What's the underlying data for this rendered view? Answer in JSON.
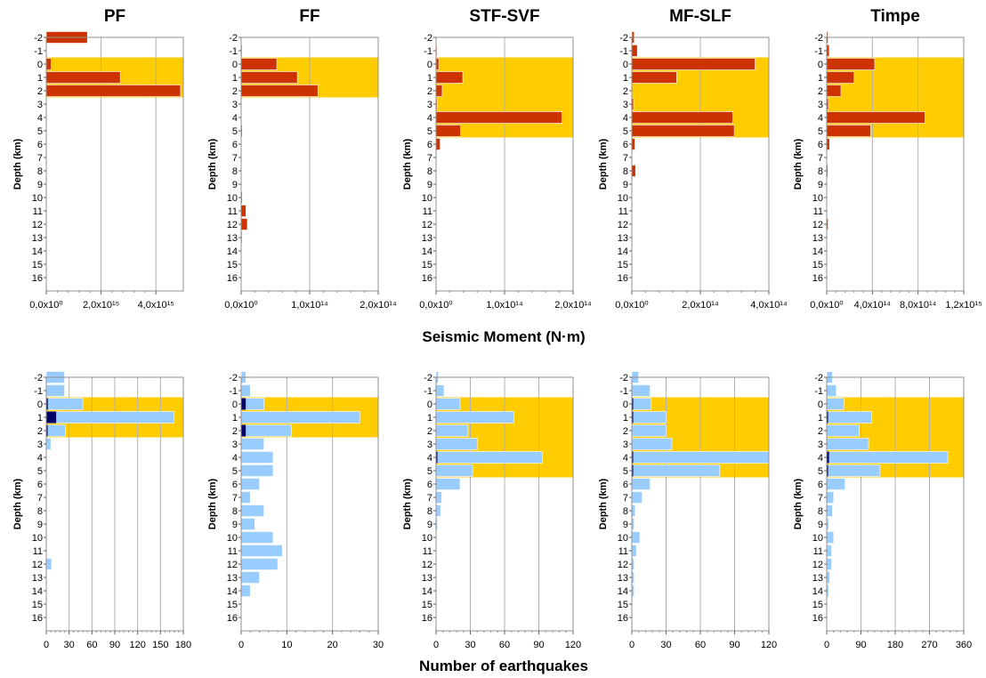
{
  "colors": {
    "zone": "#ffcc00",
    "moment_bar": "#cc3300",
    "count_bar": "#99ccff",
    "count_highlight": "#000066",
    "grid": "#b0b0b0",
    "frame": "#909090"
  },
  "labels": {
    "moment_xlabel": "Seismic Moment (N·m)",
    "count_xlabel": "Number of earthquakes"
  },
  "chart_data": [
    {
      "type": "bar",
      "orientation": "horizontal",
      "title": "PF",
      "ylabel": "Depth (km)",
      "xlabel": "Seismic Moment (N·m)",
      "depths": [
        -2,
        -1,
        0,
        1,
        2,
        3,
        4,
        5,
        6,
        7,
        8,
        9,
        10,
        11,
        12,
        13,
        14,
        15,
        16
      ],
      "xlim": [
        0,
        5000000000000000.0
      ],
      "xticks": [
        0,
        2000000000000000.0,
        4000000000000000.0
      ],
      "xtick_labels": [
        "0,0x10⁰",
        "2,0x10¹⁵",
        "4,0x10¹⁵"
      ],
      "values": [
        1500000000000000.0,
        0,
        180000000000000.0,
        2700000000000000.0,
        4900000000000000.0,
        0,
        0,
        0,
        0,
        0,
        0,
        0,
        0,
        0,
        0,
        0,
        0,
        0,
        0
      ],
      "zone_depths": [
        0,
        2
      ]
    },
    {
      "type": "bar",
      "orientation": "horizontal",
      "title": "FF",
      "ylabel": "Depth (km)",
      "xlabel": "Seismic Moment (N·m)",
      "depths": [
        -2,
        -1,
        0,
        1,
        2,
        3,
        4,
        5,
        6,
        7,
        8,
        9,
        10,
        11,
        12,
        13,
        14,
        15,
        16
      ],
      "xlim": [
        0,
        200000000000000.0
      ],
      "xticks": [
        0,
        100000000000000.0,
        200000000000000.0
      ],
      "xtick_labels": [
        "0,0x10⁰",
        "1,0x10¹⁴",
        "2,0x10¹⁴"
      ],
      "values": [
        0,
        1000000000000.0,
        52000000000000.0,
        82000000000000.0,
        112000000000000.0,
        0,
        0,
        1500000000000.0,
        0,
        0,
        0,
        0,
        1500000000000.0,
        7000000000000.0,
        9000000000000.0,
        1000000000000.0,
        0,
        0,
        0
      ],
      "zone_depths": [
        0,
        2
      ]
    },
    {
      "type": "bar",
      "orientation": "horizontal",
      "title": "STF-SVF",
      "ylabel": "Depth (km)",
      "xlabel": "Seismic Moment (N·m)",
      "depths": [
        -2,
        -1,
        0,
        1,
        2,
        3,
        4,
        5,
        6,
        7,
        8,
        9,
        10,
        11,
        12,
        13,
        14,
        15,
        16
      ],
      "xlim": [
        0,
        200000000000000.0
      ],
      "xticks": [
        0,
        100000000000000.0,
        200000000000000.0
      ],
      "xtick_labels": [
        "0,0x10⁰",
        "1,0x10¹⁴",
        "2,0x10¹⁴"
      ],
      "values": [
        0,
        1000000000000.0,
        4000000000000.0,
        39000000000000.0,
        9000000000000.0,
        1500000000000.0,
        184000000000000.0,
        36000000000000.0,
        6000000000000.0,
        0,
        0,
        0,
        0,
        0,
        0,
        0,
        0,
        0,
        0
      ],
      "zone_depths": [
        0,
        5
      ]
    },
    {
      "type": "bar",
      "orientation": "horizontal",
      "title": "MF-SLF",
      "ylabel": "Depth (km)",
      "xlabel": "Seismic Moment (N·m)",
      "depths": [
        -2,
        -1,
        0,
        1,
        2,
        3,
        4,
        5,
        6,
        7,
        8,
        9,
        10,
        11,
        12,
        13,
        14,
        15,
        16
      ],
      "xlim": [
        0,
        400000000000000.0
      ],
      "xticks": [
        0,
        200000000000000.0,
        400000000000000.0
      ],
      "xtick_labels": [
        "0,0x10⁰",
        "2,0x10¹⁴",
        "4,0x10¹⁴"
      ],
      "values": [
        7000000000000.0,
        16000000000000.0,
        360000000000000.0,
        131000000000000.0,
        0,
        5000000000000.0,
        295000000000000.0,
        299000000000000.0,
        9000000000000.0,
        0,
        11000000000000.0,
        0,
        0,
        0,
        0,
        0,
        0,
        0,
        0
      ],
      "zone_depths": [
        0,
        5
      ]
    },
    {
      "type": "bar",
      "orientation": "horizontal",
      "title": "Timpe",
      "ylabel": "Depth (km)",
      "xlabel": "Seismic Moment (N·m)",
      "depths": [
        -2,
        -1,
        0,
        1,
        2,
        3,
        4,
        5,
        6,
        7,
        8,
        9,
        10,
        11,
        12,
        13,
        14,
        15,
        16
      ],
      "xlim": [
        0,
        1200000000000000.0
      ],
      "xticks": [
        0,
        400000000000000.0,
        800000000000000.0,
        1200000000000000.0
      ],
      "xtick_labels": [
        "0,0x10⁰",
        "4,0x10¹⁴",
        "8,0x10¹⁴",
        "1,2x10¹⁵"
      ],
      "values": [
        12000000000000.0,
        22000000000000.0,
        420000000000000.0,
        240000000000000.0,
        125000000000000.0,
        15000000000000.0,
        860000000000000.0,
        385000000000000.0,
        25000000000000.0,
        0,
        10000000000000.0,
        0,
        0,
        0,
        12000000000000.0,
        0,
        0,
        0,
        0
      ],
      "zone_depths": [
        0,
        5
      ]
    },
    {
      "type": "bar",
      "orientation": "horizontal",
      "title": "PF",
      "ylabel": "Depth (km)",
      "xlabel": "Number of earthquakes",
      "depths": [
        -2,
        -1,
        0,
        1,
        2,
        3,
        4,
        5,
        6,
        7,
        8,
        9,
        10,
        11,
        12,
        13,
        14,
        15,
        16
      ],
      "xlim": [
        0,
        180
      ],
      "xticks": [
        0,
        30,
        60,
        90,
        120,
        150,
        180
      ],
      "xtick_labels": [
        "0",
        "30",
        "60",
        "90",
        "120",
        "150",
        "180"
      ],
      "series": [
        {
          "values": [
            24,
            24,
            48,
            168,
            25,
            6,
            0,
            0,
            0,
            0,
            0,
            0,
            0,
            0,
            7,
            0,
            0,
            0,
            0
          ]
        },
        {
          "values": [
            0,
            0,
            2,
            13,
            1,
            0,
            0,
            0,
            0,
            0,
            0,
            0,
            0,
            0,
            0,
            0,
            0,
            0,
            0
          ]
        }
      ],
      "zone_depths": [
        0,
        2
      ]
    },
    {
      "type": "bar",
      "orientation": "horizontal",
      "title": "FF",
      "ylabel": "Depth (km)",
      "xlabel": "Number of earthquakes",
      "depths": [
        -2,
        -1,
        0,
        1,
        2,
        3,
        4,
        5,
        6,
        7,
        8,
        9,
        10,
        11,
        12,
        13,
        14,
        15,
        16
      ],
      "xlim": [
        0,
        30
      ],
      "xticks": [
        0,
        10,
        20,
        30
      ],
      "xtick_labels": [
        "0",
        "10",
        "20",
        "30"
      ],
      "series": [
        {
          "values": [
            1,
            2,
            5,
            26,
            11,
            5,
            7,
            7,
            4,
            2,
            5,
            3,
            7,
            9,
            8,
            4,
            2,
            0,
            0
          ]
        },
        {
          "values": [
            0,
            0,
            1,
            0,
            1,
            0,
            0,
            0,
            0,
            0,
            0,
            0,
            0,
            0,
            0,
            0,
            0,
            0,
            0
          ]
        }
      ],
      "zone_depths": [
        0,
        2
      ]
    },
    {
      "type": "bar",
      "orientation": "horizontal",
      "title": "STF-SVF",
      "ylabel": "Depth (km)",
      "xlabel": "Number of earthquakes",
      "depths": [
        -2,
        -1,
        0,
        1,
        2,
        3,
        4,
        5,
        6,
        7,
        8,
        9,
        10,
        11,
        12,
        13,
        14,
        15,
        16
      ],
      "xlim": [
        0,
        120
      ],
      "xticks": [
        0,
        30,
        60,
        90,
        120
      ],
      "xtick_labels": [
        "0",
        "30",
        "60",
        "90",
        "120"
      ],
      "series": [
        {
          "values": [
            2,
            7,
            21,
            68,
            28,
            36,
            93,
            32,
            21,
            5,
            4,
            1,
            0,
            0,
            0,
            0,
            0,
            0,
            0
          ]
        },
        {
          "values": [
            0,
            0,
            0,
            0,
            0,
            0,
            1,
            0,
            0,
            0,
            0,
            0,
            0,
            0,
            0,
            0,
            0,
            0,
            0
          ]
        }
      ],
      "zone_depths": [
        0,
        5
      ]
    },
    {
      "type": "bar",
      "orientation": "horizontal",
      "title": "MF-SLF",
      "ylabel": "Depth (km)",
      "xlabel": "Number of earthquakes",
      "depths": [
        -2,
        -1,
        0,
        1,
        2,
        3,
        4,
        5,
        6,
        7,
        8,
        9,
        10,
        11,
        12,
        13,
        14,
        15,
        16
      ],
      "xlim": [
        0,
        120
      ],
      "xticks": [
        0,
        30,
        60,
        90,
        120
      ],
      "xtick_labels": [
        "0",
        "30",
        "60",
        "90",
        "120"
      ],
      "series": [
        {
          "values": [
            6,
            16,
            17,
            30,
            30,
            35,
            120,
            77,
            16,
            9,
            3,
            2,
            7,
            4,
            2,
            2,
            2,
            0,
            0
          ]
        },
        {
          "values": [
            0,
            0,
            1,
            1,
            0,
            0,
            1,
            1,
            0,
            0,
            0,
            0,
            0,
            0,
            0,
            0,
            0,
            0,
            0
          ]
        }
      ],
      "zone_depths": [
        0,
        5
      ]
    },
    {
      "type": "bar",
      "orientation": "horizontal",
      "title": "Timpe",
      "ylabel": "Depth (km)",
      "xlabel": "Number of earthquakes",
      "depths": [
        -2,
        -1,
        0,
        1,
        2,
        3,
        4,
        5,
        6,
        7,
        8,
        9,
        10,
        11,
        12,
        13,
        14,
        15,
        16
      ],
      "xlim": [
        0,
        360
      ],
      "xticks": [
        0,
        90,
        180,
        270,
        360
      ],
      "xtick_labels": [
        "0",
        "90",
        "180",
        "270",
        "360"
      ],
      "series": [
        {
          "values": [
            15,
            25,
            45,
            118,
            85,
            110,
            318,
            140,
            48,
            18,
            15,
            5,
            18,
            13,
            13,
            8,
            5,
            0,
            0
          ]
        },
        {
          "values": [
            0,
            0,
            0,
            2,
            0,
            0,
            6,
            2,
            0,
            0,
            0,
            0,
            0,
            0,
            0,
            0,
            0,
            0,
            0
          ]
        }
      ],
      "zone_depths": [
        0,
        5
      ]
    }
  ]
}
